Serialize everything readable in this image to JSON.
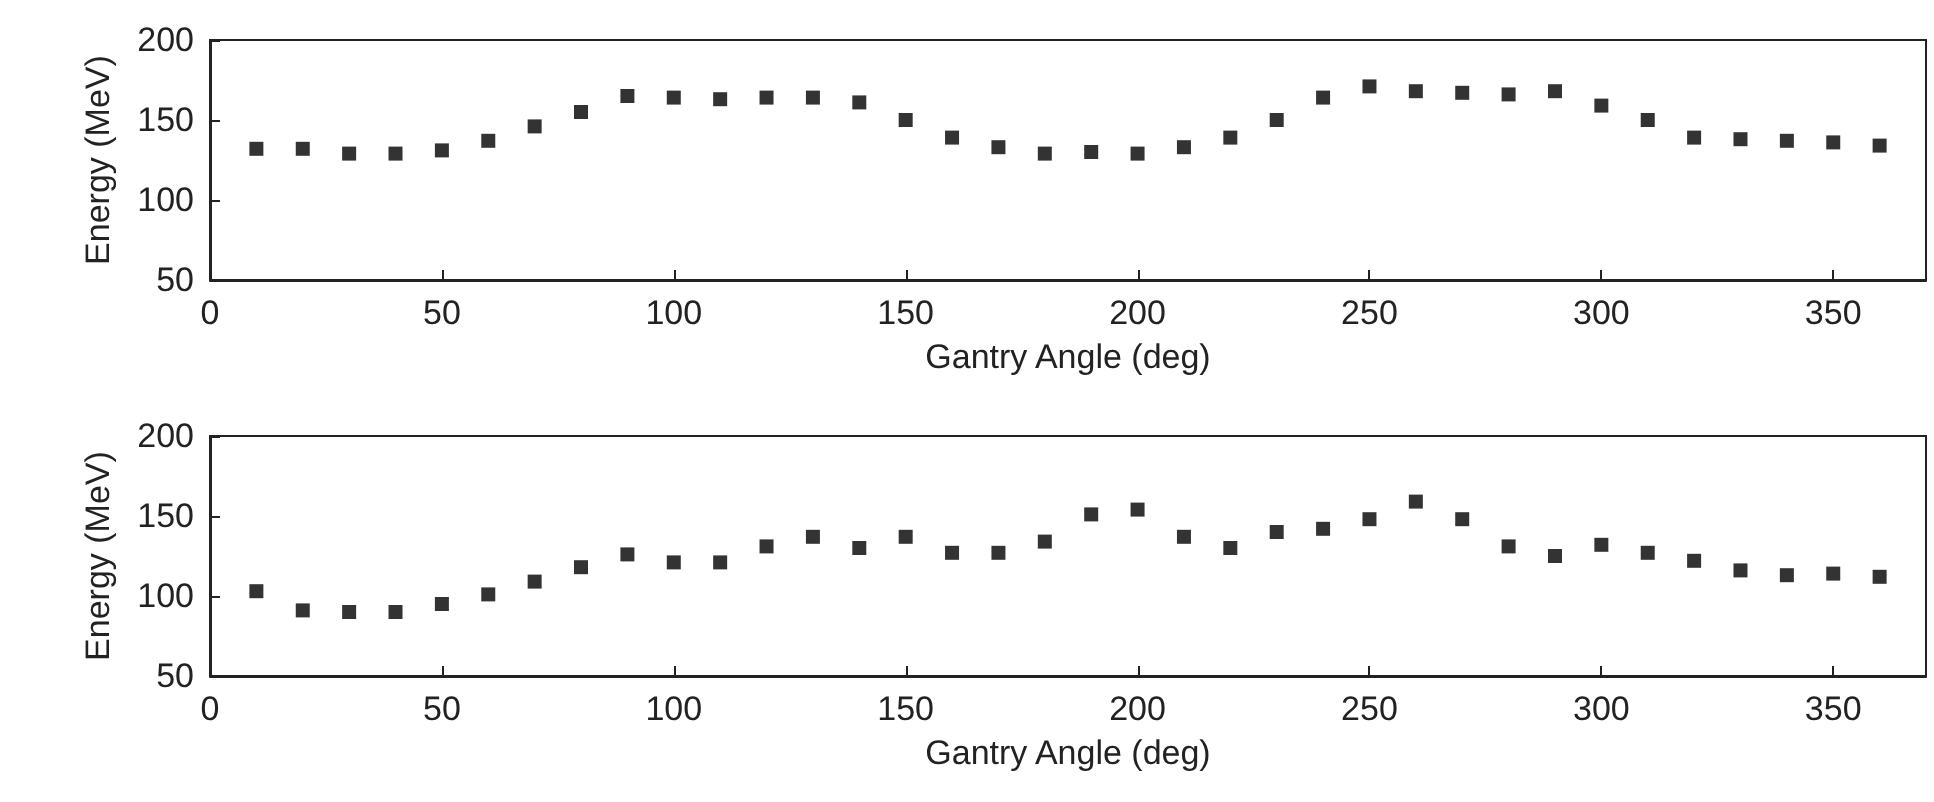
{
  "chart_data": [
    {
      "type": "scatter",
      "xlabel": "Gantry Angle (deg)",
      "ylabel": "Energy (MeV)",
      "x": [
        10,
        20,
        30,
        40,
        50,
        60,
        70,
        80,
        90,
        100,
        110,
        120,
        130,
        140,
        150,
        160,
        170,
        180,
        190,
        200,
        210,
        220,
        230,
        240,
        250,
        260,
        270,
        280,
        290,
        300,
        310,
        320,
        330,
        340,
        350,
        360
      ],
      "series": [
        {
          "color": "#000000",
          "values": [
            132,
            132,
            129,
            129,
            131,
            137,
            146,
            155,
            165,
            164,
            163,
            164,
            164,
            161,
            150,
            139,
            133,
            129,
            130,
            129,
            133,
            139,
            150,
            164,
            171,
            168,
            167,
            166,
            168,
            159,
            150,
            139,
            138,
            137,
            136,
            134
          ]
        }
      ],
      "xlim": [
        0,
        370
      ],
      "xticks": [
        0,
        50,
        100,
        150,
        200,
        250,
        300,
        350
      ],
      "ylim": [
        50,
        200
      ],
      "yticks": [
        50,
        100,
        150,
        200
      ],
      "marker": "square"
    },
    {
      "type": "scatter",
      "xlabel": "Gantry Angle (deg)",
      "ylabel": "Energy (MeV)",
      "x": [
        10,
        20,
        30,
        40,
        50,
        60,
        70,
        80,
        90,
        100,
        110,
        120,
        130,
        140,
        150,
        160,
        170,
        180,
        190,
        200,
        210,
        220,
        230,
        240,
        250,
        260,
        270,
        280,
        290,
        300,
        310,
        320,
        330,
        340,
        350,
        360
      ],
      "series": [
        {
          "color": "#000000",
          "values": [
            103,
            91,
            90,
            90,
            95,
            101,
            109,
            118,
            126,
            121,
            121,
            131,
            137,
            130,
            137,
            127,
            127,
            134,
            151,
            154,
            137,
            130,
            140,
            142,
            148,
            159,
            148,
            131,
            125,
            132,
            127,
            122,
            116,
            113,
            114,
            112
          ]
        }
      ],
      "xlim": [
        0,
        370
      ],
      "xticks": [
        0,
        50,
        100,
        150,
        200,
        250,
        300,
        350
      ],
      "ylim": [
        50,
        200
      ],
      "yticks": [
        50,
        100,
        150,
        200
      ],
      "marker": "square"
    }
  ]
}
